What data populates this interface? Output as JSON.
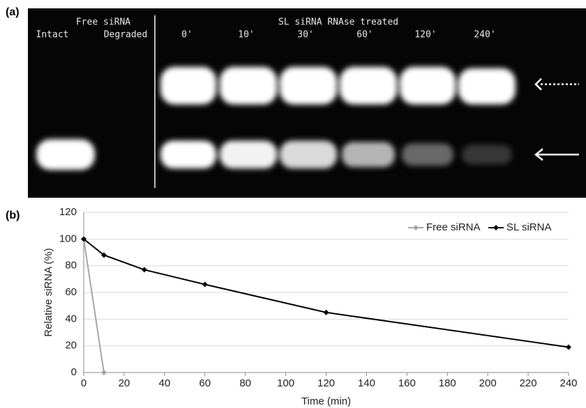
{
  "panels": {
    "a": "(a)",
    "b": "(b)"
  },
  "gel": {
    "group_labels": [
      "Free siRNA",
      "SL siRNA RNAse treated"
    ],
    "free_lanes": [
      "Intact",
      "Degraded"
    ],
    "sl_lanes": [
      "0'",
      "10'",
      "30'",
      "60'",
      "120'",
      "240'"
    ]
  },
  "chart_data": {
    "type": "line",
    "x_label": "Time (min)",
    "y_label": "Relative siRNA (%)",
    "series": [
      {
        "name": "Free siRNA",
        "color": "#a6a6a6",
        "x": [
          0,
          10
        ],
        "values": [
          100,
          0
        ]
      },
      {
        "name": "SL siRNA",
        "color": "#000000",
        "x": [
          0,
          10,
          30,
          60,
          120,
          240
        ],
        "values": [
          100,
          88,
          77,
          66,
          45,
          19
        ]
      }
    ],
    "xlim": [
      0,
      240
    ],
    "xticks": [
      0,
      20,
      40,
      60,
      80,
      100,
      120,
      140,
      160,
      180,
      200,
      220,
      240
    ],
    "ylim": [
      0,
      120
    ],
    "yticks": [
      0,
      20,
      40,
      60,
      80,
      100,
      120
    ],
    "grid": true,
    "legend": "top-right"
  }
}
